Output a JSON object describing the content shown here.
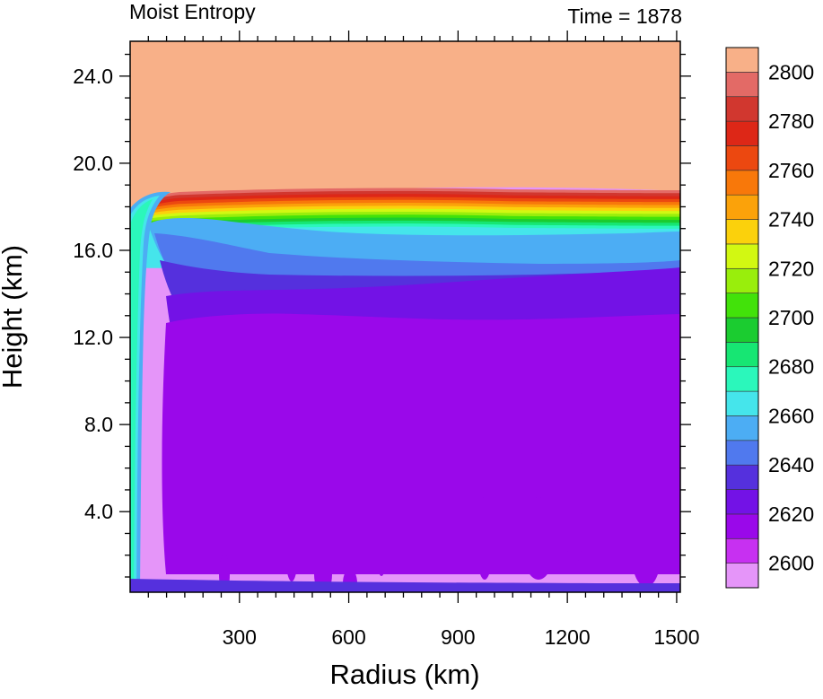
{
  "chart_data": {
    "type": "heatmap",
    "title_left": "Moist Entropy",
    "title_right": "Time = 1878",
    "xlabel": "Radius (km)",
    "ylabel": "Height (km)",
    "xlim": [
      0,
      1510
    ],
    "ylim": [
      0.3,
      25.6
    ],
    "x_ticks": [
      300,
      600,
      900,
      1200,
      1500
    ],
    "x_tick_labels": [
      "300",
      "600",
      "900",
      "1200",
      "1500"
    ],
    "y_ticks": [
      4,
      8,
      12,
      16,
      20,
      24
    ],
    "y_tick_labels": [
      "4.0",
      "8.0",
      "12.0",
      "16.0",
      "20.0",
      "24.0"
    ],
    "colorbar": {
      "levels": [
        2600,
        2610,
        2620,
        2630,
        2640,
        2650,
        2660,
        2670,
        2680,
        2690,
        2700,
        2710,
        2720,
        2730,
        2740,
        2750,
        2760,
        2770,
        2780,
        2790,
        2800
      ],
      "tick_labels": [
        "2600",
        "2620",
        "2640",
        "2660",
        "2680",
        "2700",
        "2720",
        "2740",
        "2760",
        "2780",
        "2800"
      ],
      "colors": [
        "#e595f9",
        "#c730f1",
        "#9a08ea",
        "#7312e6",
        "#5530dd",
        "#5079ee",
        "#4cadf4",
        "#45e5eb",
        "#2bf7bb",
        "#17e673",
        "#1bcc30",
        "#42e20a",
        "#99ee0c",
        "#d2f812",
        "#fbd10c",
        "#fba20a",
        "#f8780a",
        "#ec4810",
        "#dd2717",
        "#d1372f",
        "#e36a66",
        "#f8b088"
      ]
    },
    "region_levels": {
      "background": 2595,
      "stratosphere": 2805,
      "bands": [
        2790,
        2780,
        2770,
        2760,
        2750,
        2740,
        2730,
        2720,
        2710,
        2700,
        2690,
        2680,
        2670,
        2660
      ],
      "upper_blue": 2650,
      "blue_layer": 2640,
      "indigo_layer": 2630,
      "violet_layer": 2620,
      "purple_layer": 2610,
      "eyewall": [
        2650,
        2660,
        2670
      ]
    }
  }
}
